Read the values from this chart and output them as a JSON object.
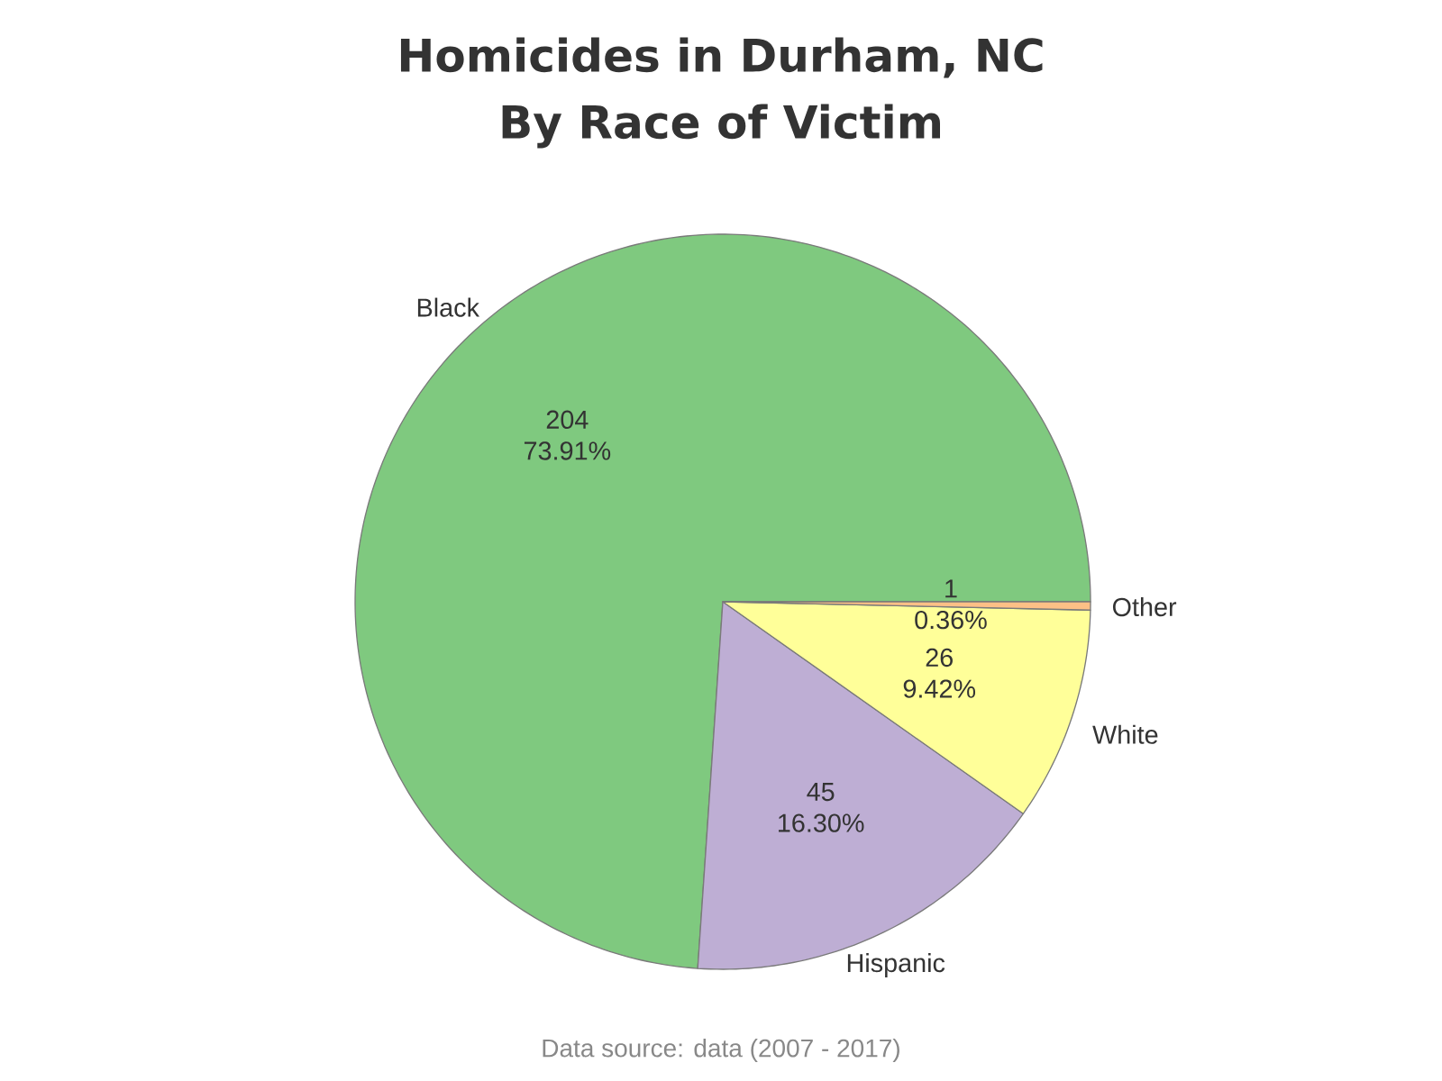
{
  "chart_data": {
    "type": "pie",
    "title": "Homicides in Durham, NC",
    "subtitle": "By Race of Victim",
    "categories": [
      "Black",
      "Hispanic",
      "White",
      "Other"
    ],
    "values": [
      204,
      45,
      26,
      1
    ],
    "colors": [
      "#7fc97f",
      "#beaed4",
      "#ffff99",
      "#fdc086"
    ],
    "value_labels": [
      "204 73.91%",
      "45 16.30%",
      "26 9.42%",
      "1 0.36%"
    ],
    "annotations": [
      "Data source: data (2007 - 2017)"
    ]
  }
}
